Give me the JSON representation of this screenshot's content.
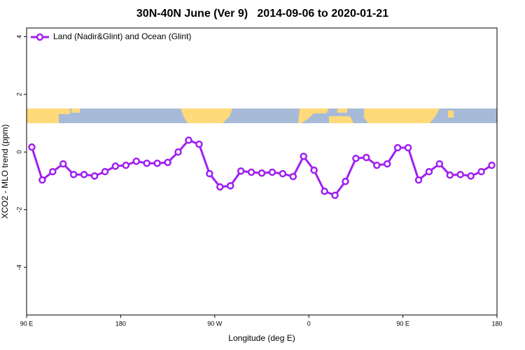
{
  "chart_data": {
    "type": "line",
    "title": "30N-40N June (Ver 9)   2014-09-06 to 2020-01-21",
    "xlabel": "Longitude (deg E)",
    "ylabel": "XCO2 - MLO trend (ppm)",
    "x": [
      95,
      105,
      115,
      125,
      135,
      145,
      155,
      165,
      175,
      185,
      195,
      205,
      215,
      225,
      235,
      245,
      255,
      265,
      275,
      285,
      295,
      305,
      315,
      325,
      335,
      345,
      355,
      365,
      375,
      385,
      395,
      405,
      415,
      425,
      435,
      445,
      455,
      465,
      475,
      485,
      495,
      505,
      515,
      525,
      535
    ],
    "series": [
      {
        "name": "Land (Nadir&Glint) and Ocean (Glint)",
        "color": "#a020f0",
        "values": [
          0.17,
          -0.97,
          -0.68,
          -0.41,
          -0.78,
          -0.78,
          -0.83,
          -0.68,
          -0.49,
          -0.46,
          -0.32,
          -0.39,
          -0.39,
          -0.36,
          0.0,
          0.41,
          0.27,
          -0.75,
          -1.21,
          -1.17,
          -0.66,
          -0.7,
          -0.73,
          -0.7,
          -0.75,
          -0.85,
          -0.15,
          -0.63,
          -1.36,
          -1.5,
          -1.02,
          -0.22,
          -0.19,
          -0.46,
          -0.41,
          0.15,
          0.15,
          -0.97,
          -0.68,
          -0.41,
          -0.8,
          -0.78,
          -0.83,
          -0.68,
          -0.46
        ]
      }
    ],
    "xlim": [
      90,
      540
    ],
    "xticks": [
      {
        "value": 90,
        "label": "90 E"
      },
      {
        "value": 180,
        "label": "180"
      },
      {
        "value": 270,
        "label": "90 W"
      },
      {
        "value": 360,
        "label": "0"
      },
      {
        "value": 450,
        "label": "90 E"
      },
      {
        "value": 540,
        "label": "180"
      }
    ],
    "ylim": [
      -5.65,
      4.3
    ],
    "yticks": [
      -4,
      -2,
      0,
      2,
      4
    ],
    "legend": "top-left"
  }
}
